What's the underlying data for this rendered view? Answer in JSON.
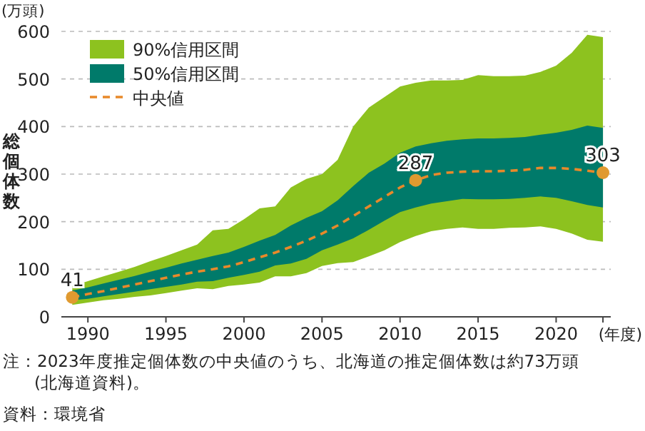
{
  "chart_data": {
    "type": "line",
    "ylabel": "総個体数",
    "xlabel": "(年度)",
    "annotations": [
      "(万頭)",
      "注：2023年度推定個体数の中央値のうち、北海道の推定個体数は約73万頭(北海道資料)。",
      "資料：環境省"
    ],
    "x": [
      1989,
      1990,
      1991,
      1992,
      1993,
      1994,
      1995,
      1996,
      1997,
      1998,
      1999,
      2000,
      2001,
      2002,
      2003,
      2004,
      2005,
      2006,
      2007,
      2008,
      2009,
      2010,
      2011,
      2012,
      2013,
      2014,
      2015,
      2016,
      2017,
      2018,
      2019,
      2020,
      2021,
      2022,
      2023
    ],
    "series": [
      {
        "name": "90%信用区間",
        "color": "#8dc21f",
        "values": [
          null,
          null,
          null,
          null,
          null,
          null,
          null,
          null,
          null,
          null,
          null,
          null,
          null,
          null,
          null,
          null,
          null,
          null,
          null,
          null,
          null,
          null,
          null,
          null,
          null,
          null,
          null,
          null,
          null,
          null,
          null,
          null,
          null,
          null,
          null
        ],
        "lower": [
          25,
          30,
          35,
          38,
          42,
          45,
          50,
          55,
          60,
          58,
          65,
          68,
          72,
          85,
          85,
          92,
          107,
          113,
          115,
          127,
          140,
          157,
          170,
          180,
          185,
          188,
          185,
          185,
          187,
          188,
          190,
          185,
          175,
          162,
          158
        ],
        "upper": [
          65,
          75,
          85,
          95,
          105,
          117,
          128,
          140,
          152,
          182,
          185,
          205,
          228,
          232,
          272,
          290,
          300,
          330,
          400,
          440,
          462,
          484,
          492,
          497,
          497,
          498,
          508,
          506,
          506,
          507,
          515,
          528,
          555,
          593,
          588
        ]
      },
      {
        "name": "50%信用区間",
        "color": "#007a6a",
        "values": [
          null,
          null,
          null,
          null,
          null,
          null,
          null,
          null,
          null,
          null,
          null,
          null,
          null,
          null,
          null,
          null,
          null,
          null,
          null,
          null,
          null,
          null,
          null,
          null,
          null,
          null,
          null,
          null,
          null,
          null,
          null,
          null,
          null,
          null,
          null
        ],
        "lower": [
          35,
          38,
          43,
          48,
          53,
          58,
          63,
          68,
          74,
          75,
          82,
          88,
          95,
          108,
          112,
          122,
          140,
          152,
          165,
          183,
          202,
          220,
          230,
          238,
          243,
          248,
          247,
          247,
          248,
          250,
          253,
          250,
          243,
          235,
          230
        ],
        "upper": [
          55,
          62,
          70,
          78,
          86,
          95,
          103,
          112,
          120,
          128,
          135,
          147,
          160,
          172,
          192,
          208,
          222,
          245,
          275,
          303,
          322,
          345,
          358,
          365,
          370,
          373,
          375,
          375,
          376,
          378,
          383,
          387,
          393,
          402,
          397
        ]
      },
      {
        "name": "中央値",
        "type": "line",
        "color": "#e8892a",
        "line_style": "dashed",
        "values": [
          41,
          48,
          54,
          61,
          68,
          75,
          82,
          89,
          95,
          100,
          106,
          115,
          125,
          135,
          147,
          160,
          175,
          192,
          212,
          232,
          252,
          272,
          287,
          298,
          303,
          305,
          306,
          306,
          307,
          309,
          313,
          313,
          311,
          307,
          303
        ],
        "value_labels": [
          "41",
          null,
          null,
          null,
          null,
          null,
          null,
          null,
          null,
          null,
          null,
          null,
          null,
          null,
          null,
          null,
          null,
          null,
          null,
          null,
          null,
          null,
          "287",
          null,
          null,
          null,
          null,
          null,
          null,
          null,
          null,
          null,
          null,
          null,
          "303"
        ]
      }
    ],
    "xlim": [
      1988.3,
      2023.5
    ],
    "xticks": [
      1990,
      1995,
      2000,
      2005,
      2010,
      2015,
      2020
    ],
    "ylim": [
      0,
      600
    ],
    "yticks": [
      0,
      100,
      200,
      300,
      400,
      500,
      600
    ],
    "grid": "y",
    "legend": "top left"
  }
}
